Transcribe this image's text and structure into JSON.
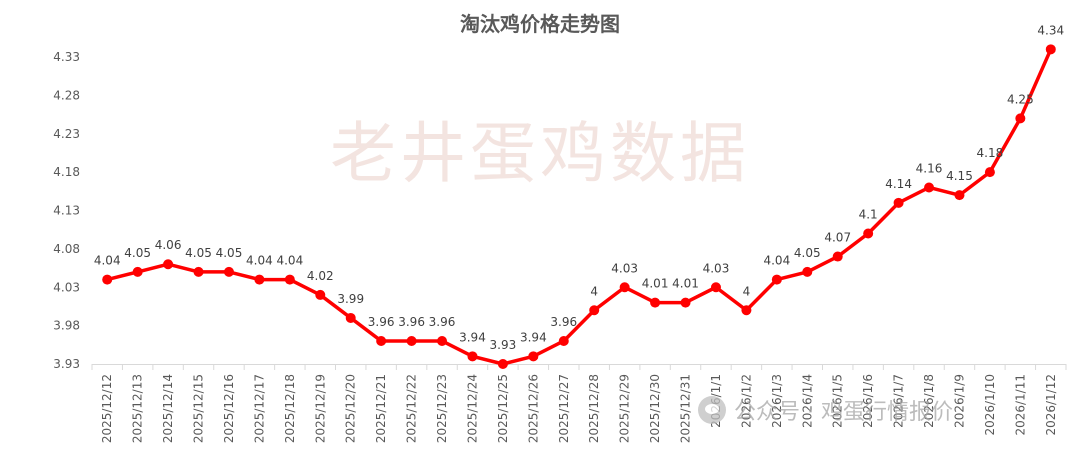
{
  "chart_data": {
    "type": "line",
    "title": "淘汰鸡价格走势图",
    "xlabel": "",
    "ylabel": "",
    "categories": [
      "2025/12/12",
      "2025/12/13",
      "2025/12/14",
      "2025/12/15",
      "2025/12/16",
      "2025/12/17",
      "2025/12/18",
      "2025/12/19",
      "2025/12/20",
      "2025/12/21",
      "2025/12/22",
      "2025/12/23",
      "2025/12/24",
      "2025/12/25",
      "2025/12/26",
      "2025/12/27",
      "2025/12/28",
      "2025/12/29",
      "2025/12/30",
      "2025/12/31",
      "2026/1/1",
      "2026/1/2",
      "2026/1/3",
      "2026/1/4",
      "2026/1/5",
      "2026/1/6",
      "2026/1/7",
      "2026/1/8",
      "2026/1/9",
      "2026/1/10",
      "2026/1/11",
      "2026/1/12"
    ],
    "values": [
      4.04,
      4.05,
      4.06,
      4.05,
      4.05,
      4.04,
      4.04,
      4.02,
      3.99,
      3.96,
      3.96,
      3.96,
      3.94,
      3.93,
      3.94,
      3.96,
      4,
      4.03,
      4.01,
      4.01,
      4.03,
      4,
      4.04,
      4.05,
      4.07,
      4.1,
      4.14,
      4.16,
      4.15,
      4.18,
      4.25,
      4.34
    ],
    "data_labels": [
      "4.04",
      "4.05",
      "4.06",
      "4.05",
      "4.05",
      "4.04",
      "4.04",
      "4.02",
      "3.99",
      "3.96",
      "3.96",
      "3.96",
      "3.94",
      "3.93",
      "3.94",
      "3.96",
      "4",
      "4.03",
      "4.01",
      "4.01",
      "4.03",
      "4",
      "4.04",
      "4.05",
      "4.07",
      "4.1",
      "4.14",
      "4.16",
      "4.15",
      "4.18",
      "4.25",
      "4.34"
    ],
    "ylim": [
      3.93,
      4.33
    ],
    "yticks": [
      "3.93",
      "3.98",
      "4.03",
      "4.08",
      "4.13",
      "4.18",
      "4.23",
      "4.28",
      "4.33"
    ],
    "grid": false,
    "legend": "none",
    "colors": {
      "line": "#ff0000",
      "axis": "#d9d9d9",
      "tick_text": "#595959",
      "label_text": "#404040"
    }
  },
  "watermarks": {
    "center": "老井蛋鸡数据",
    "bottom": "公众号 · 鸡蛋行情报价"
  }
}
